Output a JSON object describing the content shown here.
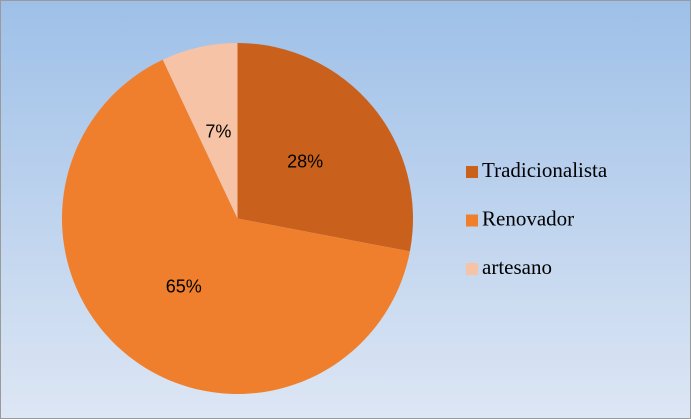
{
  "chart_data": {
    "type": "pie",
    "categories": [
      "Tradicionalista",
      "Renovador",
      "artesano"
    ],
    "values": [
      28,
      65,
      7
    ],
    "value_labels": [
      "28%",
      "65%",
      "7%"
    ],
    "colors": [
      "#c9611c",
      "#ef7f2d",
      "#f7c3a6"
    ],
    "legend": "right"
  }
}
